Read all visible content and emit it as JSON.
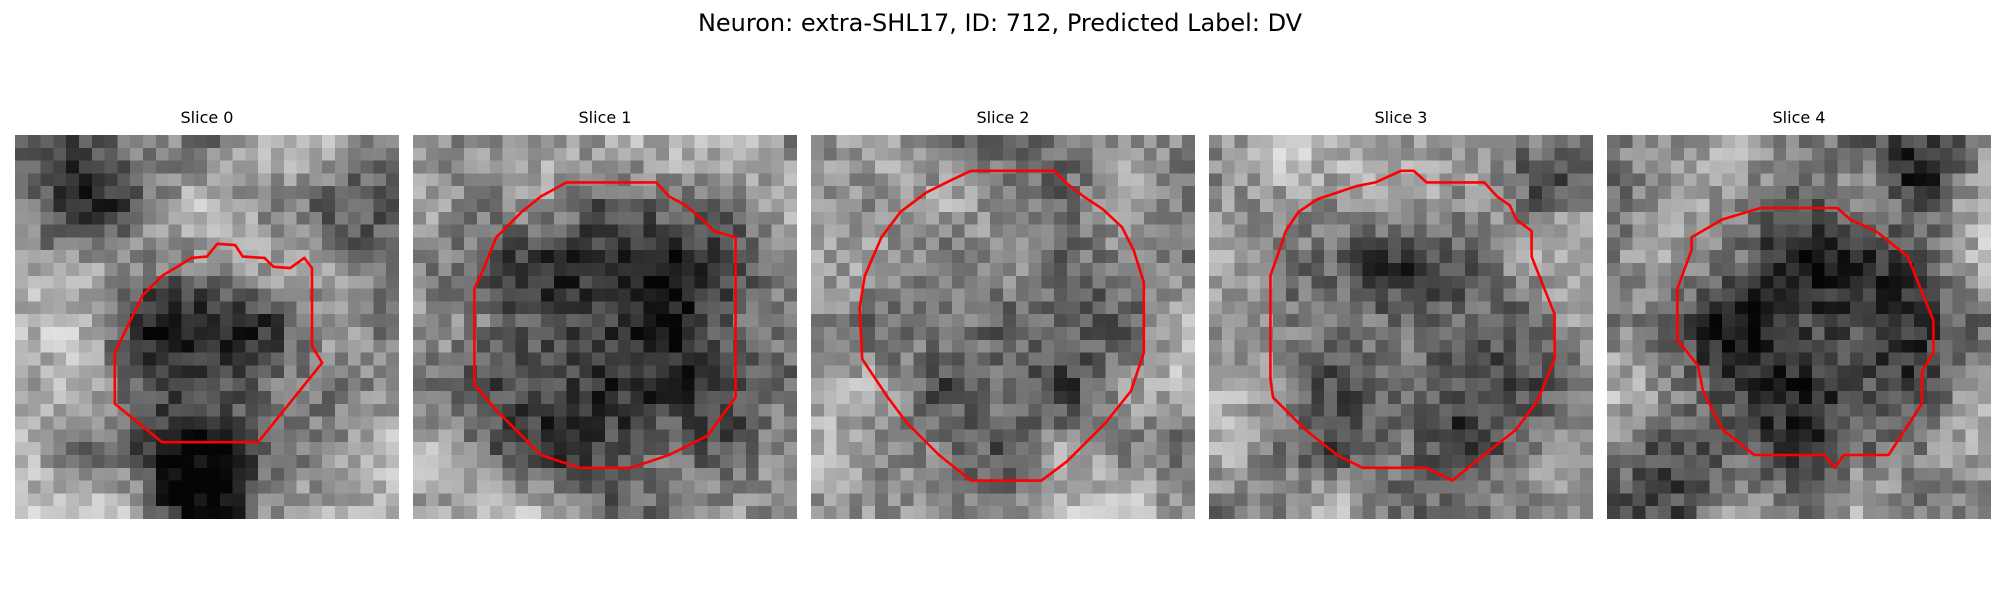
{
  "figure": {
    "title": "Neuron: extra-SHL17, ID: 712, Predicted Label: DV",
    "outline_color": "#ff0000",
    "colormap": "grayscale",
    "grid_size": 30,
    "panels": [
      {
        "title": "Slice 0",
        "seed": 11,
        "blobs": [
          {
            "cx": 14,
            "cy": 18,
            "r": 7.5,
            "a": -0.45
          },
          {
            "cx": 14,
            "cy": 27,
            "r": 4.5,
            "a": -0.55
          },
          {
            "cx": 4,
            "cy": 4,
            "r": 5,
            "a": -0.3
          },
          {
            "cx": 26,
            "cy": 5,
            "r": 4,
            "a": -0.2
          }
        ],
        "contour": [
          [
            15.8,
            8.5
          ],
          [
            17.2,
            8.6
          ],
          [
            17.8,
            9.5
          ],
          [
            19.5,
            9.6
          ],
          [
            20.2,
            10.3
          ],
          [
            21.5,
            10.4
          ],
          [
            22.6,
            9.6
          ],
          [
            23.2,
            10.4
          ],
          [
            23.2,
            16.5
          ],
          [
            24,
            17.8
          ],
          [
            19,
            24
          ],
          [
            11.5,
            24
          ],
          [
            7.8,
            21
          ],
          [
            7.8,
            17
          ],
          [
            9.5,
            13.5
          ],
          [
            10,
            12.5
          ],
          [
            11.5,
            11
          ],
          [
            12.5,
            10.4
          ],
          [
            13.8,
            9.6
          ],
          [
            15,
            9.5
          ]
        ]
      },
      {
        "title": "Slice 1",
        "seed": 23,
        "blobs": [
          {
            "cx": 15,
            "cy": 16,
            "r": 11.5,
            "a": -0.48
          }
        ],
        "contour": [
          [
            12,
            3.7
          ],
          [
            19,
            3.7
          ],
          [
            20,
            4.8
          ],
          [
            21.3,
            5.5
          ],
          [
            22.6,
            6.6
          ],
          [
            23.5,
            7.5
          ],
          [
            25.2,
            8
          ],
          [
            25.2,
            20.5
          ],
          [
            23,
            23.5
          ],
          [
            20,
            25
          ],
          [
            17,
            26
          ],
          [
            13,
            26
          ],
          [
            10,
            25
          ],
          [
            6.5,
            21.5
          ],
          [
            4.8,
            19.5
          ],
          [
            4.8,
            12
          ],
          [
            5.5,
            10.5
          ],
          [
            6.5,
            8
          ],
          [
            8.5,
            6
          ],
          [
            10,
            4.8
          ]
        ]
      },
      {
        "title": "Slice 2",
        "seed": 37,
        "blobs": [
          {
            "cx": 15,
            "cy": 16,
            "r": 11.5,
            "a": -0.22
          }
        ],
        "contour": [
          [
            12.5,
            2.8
          ],
          [
            19,
            2.8
          ],
          [
            20,
            3.8
          ],
          [
            21.3,
            4.8
          ],
          [
            22.8,
            5.8
          ],
          [
            24.3,
            7.2
          ],
          [
            25.2,
            9
          ],
          [
            26,
            11.5
          ],
          [
            26,
            17
          ],
          [
            25,
            20
          ],
          [
            23,
            22.5
          ],
          [
            20,
            25.5
          ],
          [
            18,
            27
          ],
          [
            12.5,
            27
          ],
          [
            10,
            25
          ],
          [
            7.5,
            22.5
          ],
          [
            6,
            20.5
          ],
          [
            4,
            17.5
          ],
          [
            3.8,
            13.5
          ],
          [
            4.2,
            11
          ],
          [
            5.5,
            8
          ],
          [
            7,
            6
          ],
          [
            9,
            4.5
          ],
          [
            11,
            3.5
          ]
        ]
      },
      {
        "title": "Slice 3",
        "seed": 51,
        "blobs": [
          {
            "cx": 16,
            "cy": 16,
            "r": 11.5,
            "a": -0.35
          },
          {
            "cx": 26,
            "cy": 2,
            "r": 3.5,
            "a": -0.3
          }
        ],
        "contour": [
          [
            13,
            3.7
          ],
          [
            15,
            2.8
          ],
          [
            16,
            2.8
          ],
          [
            17,
            3.7
          ],
          [
            21.5,
            3.7
          ],
          [
            22.5,
            4.8
          ],
          [
            23.5,
            5.5
          ],
          [
            24,
            6.6
          ],
          [
            25.2,
            7.5
          ],
          [
            25.2,
            9.5
          ],
          [
            26,
            11.5
          ],
          [
            27,
            14
          ],
          [
            27,
            17.5
          ],
          [
            26,
            20
          ],
          [
            25.5,
            21
          ],
          [
            24,
            23
          ],
          [
            21.5,
            25
          ],
          [
            19,
            27
          ],
          [
            17,
            26
          ],
          [
            12,
            26
          ],
          [
            10,
            25
          ],
          [
            7.5,
            23
          ],
          [
            5,
            20.5
          ],
          [
            4.8,
            19
          ],
          [
            4.8,
            11
          ],
          [
            5.5,
            9
          ],
          [
            6,
            7.5
          ],
          [
            7,
            6
          ],
          [
            8.5,
            5
          ],
          [
            10,
            4.5
          ],
          [
            11.5,
            4
          ]
        ]
      },
      {
        "title": "Slice 4",
        "seed": 67,
        "blobs": [
          {
            "cx": 15,
            "cy": 15,
            "r": 10,
            "a": -0.5
          },
          {
            "cx": 4,
            "cy": 27,
            "r": 5,
            "a": -0.15
          },
          {
            "cx": 24,
            "cy": 1,
            "r": 3.5,
            "a": -0.45
          }
        ],
        "contour": [
          [
            12,
            5.7
          ],
          [
            18,
            5.7
          ],
          [
            19,
            6.6
          ],
          [
            21,
            7.5
          ],
          [
            23.5,
            9.5
          ],
          [
            24.5,
            12
          ],
          [
            25.5,
            14.5
          ],
          [
            25.5,
            17
          ],
          [
            24.6,
            18.5
          ],
          [
            24.6,
            21
          ],
          [
            22,
            25
          ],
          [
            18.5,
            25
          ],
          [
            17.8,
            26
          ],
          [
            17,
            25
          ],
          [
            11.5,
            25
          ],
          [
            9,
            23
          ],
          [
            7.5,
            20
          ],
          [
            7.1,
            18
          ],
          [
            5.5,
            16
          ],
          [
            5.5,
            12
          ],
          [
            6.6,
            9
          ],
          [
            6.6,
            8
          ],
          [
            9,
            6.6
          ]
        ]
      }
    ]
  }
}
